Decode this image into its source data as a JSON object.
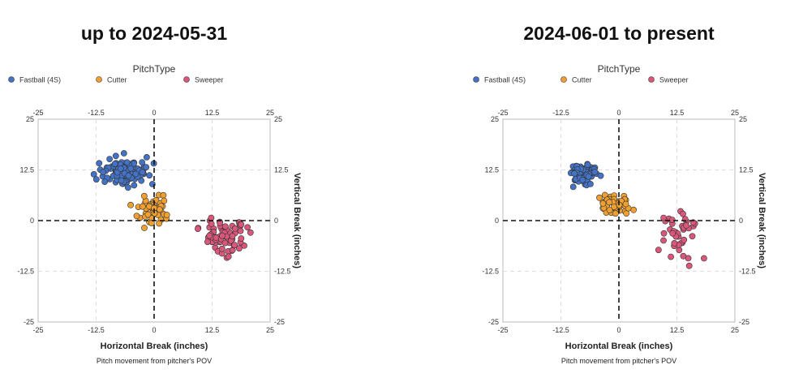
{
  "legend": {
    "title": "PitchType",
    "items": [
      {
        "label": "Fastball (4S)",
        "color": "#4472C4"
      },
      {
        "label": "Cutter",
        "color": "#F0A030"
      },
      {
        "label": "Sweeper",
        "color": "#D9577A"
      }
    ]
  },
  "chart_data": [
    {
      "type": "scatter",
      "title": "up to 2024-05-31",
      "xlabel": "Horizontal Break (inches)",
      "ylabel": "Vertical Break (inches)",
      "caption": "Pitch movement from pitcher's POV",
      "xlim": [
        -25,
        25
      ],
      "ylim": [
        -25,
        25
      ],
      "ticks": [
        -25,
        -12.5,
        0,
        12.5,
        25
      ],
      "tick_labels": [
        "-25",
        "-12.5",
        "0",
        "12.5",
        "25"
      ],
      "series": [
        {
          "name": "Fastball (4S)",
          "cluster": {
            "cx": -6.5,
            "cy": 12,
            "sx": 3.0,
            "sy": 2.2,
            "n": 120
          }
        },
        {
          "name": "Cutter",
          "cluster": {
            "cx": -0.5,
            "cy": 2.5,
            "sx": 2.4,
            "sy": 2.2,
            "n": 55
          }
        },
        {
          "name": "Sweeper",
          "cluster": {
            "cx": 15,
            "cy": -4,
            "sx": 3.0,
            "sy": 3.0,
            "n": 85
          }
        }
      ]
    },
    {
      "type": "scatter",
      "title": "2024-06-01 to present",
      "xlabel": "Horizontal Break (inches)",
      "ylabel": "Vertical Break (inches)",
      "caption": "Pitch movement from pitcher's POV",
      "xlim": [
        -25,
        25
      ],
      "ylim": [
        -25,
        25
      ],
      "ticks": [
        -25,
        -12.5,
        0,
        12.5,
        25
      ],
      "tick_labels": [
        "-25",
        "-12.5",
        "0",
        "12.5",
        "25"
      ],
      "series": [
        {
          "name": "Fastball (4S)",
          "cluster": {
            "cx": -7.5,
            "cy": 11.5,
            "sx": 2.2,
            "sy": 1.8,
            "n": 75
          }
        },
        {
          "name": "Cutter",
          "cluster": {
            "cx": -1,
            "cy": 4,
            "sx": 2.0,
            "sy": 2.0,
            "n": 50
          }
        },
        {
          "name": "Sweeper",
          "cluster": {
            "cx": 13,
            "cy": -3.5,
            "sx": 2.8,
            "sy": 4.0,
            "n": 40
          }
        }
      ]
    }
  ]
}
